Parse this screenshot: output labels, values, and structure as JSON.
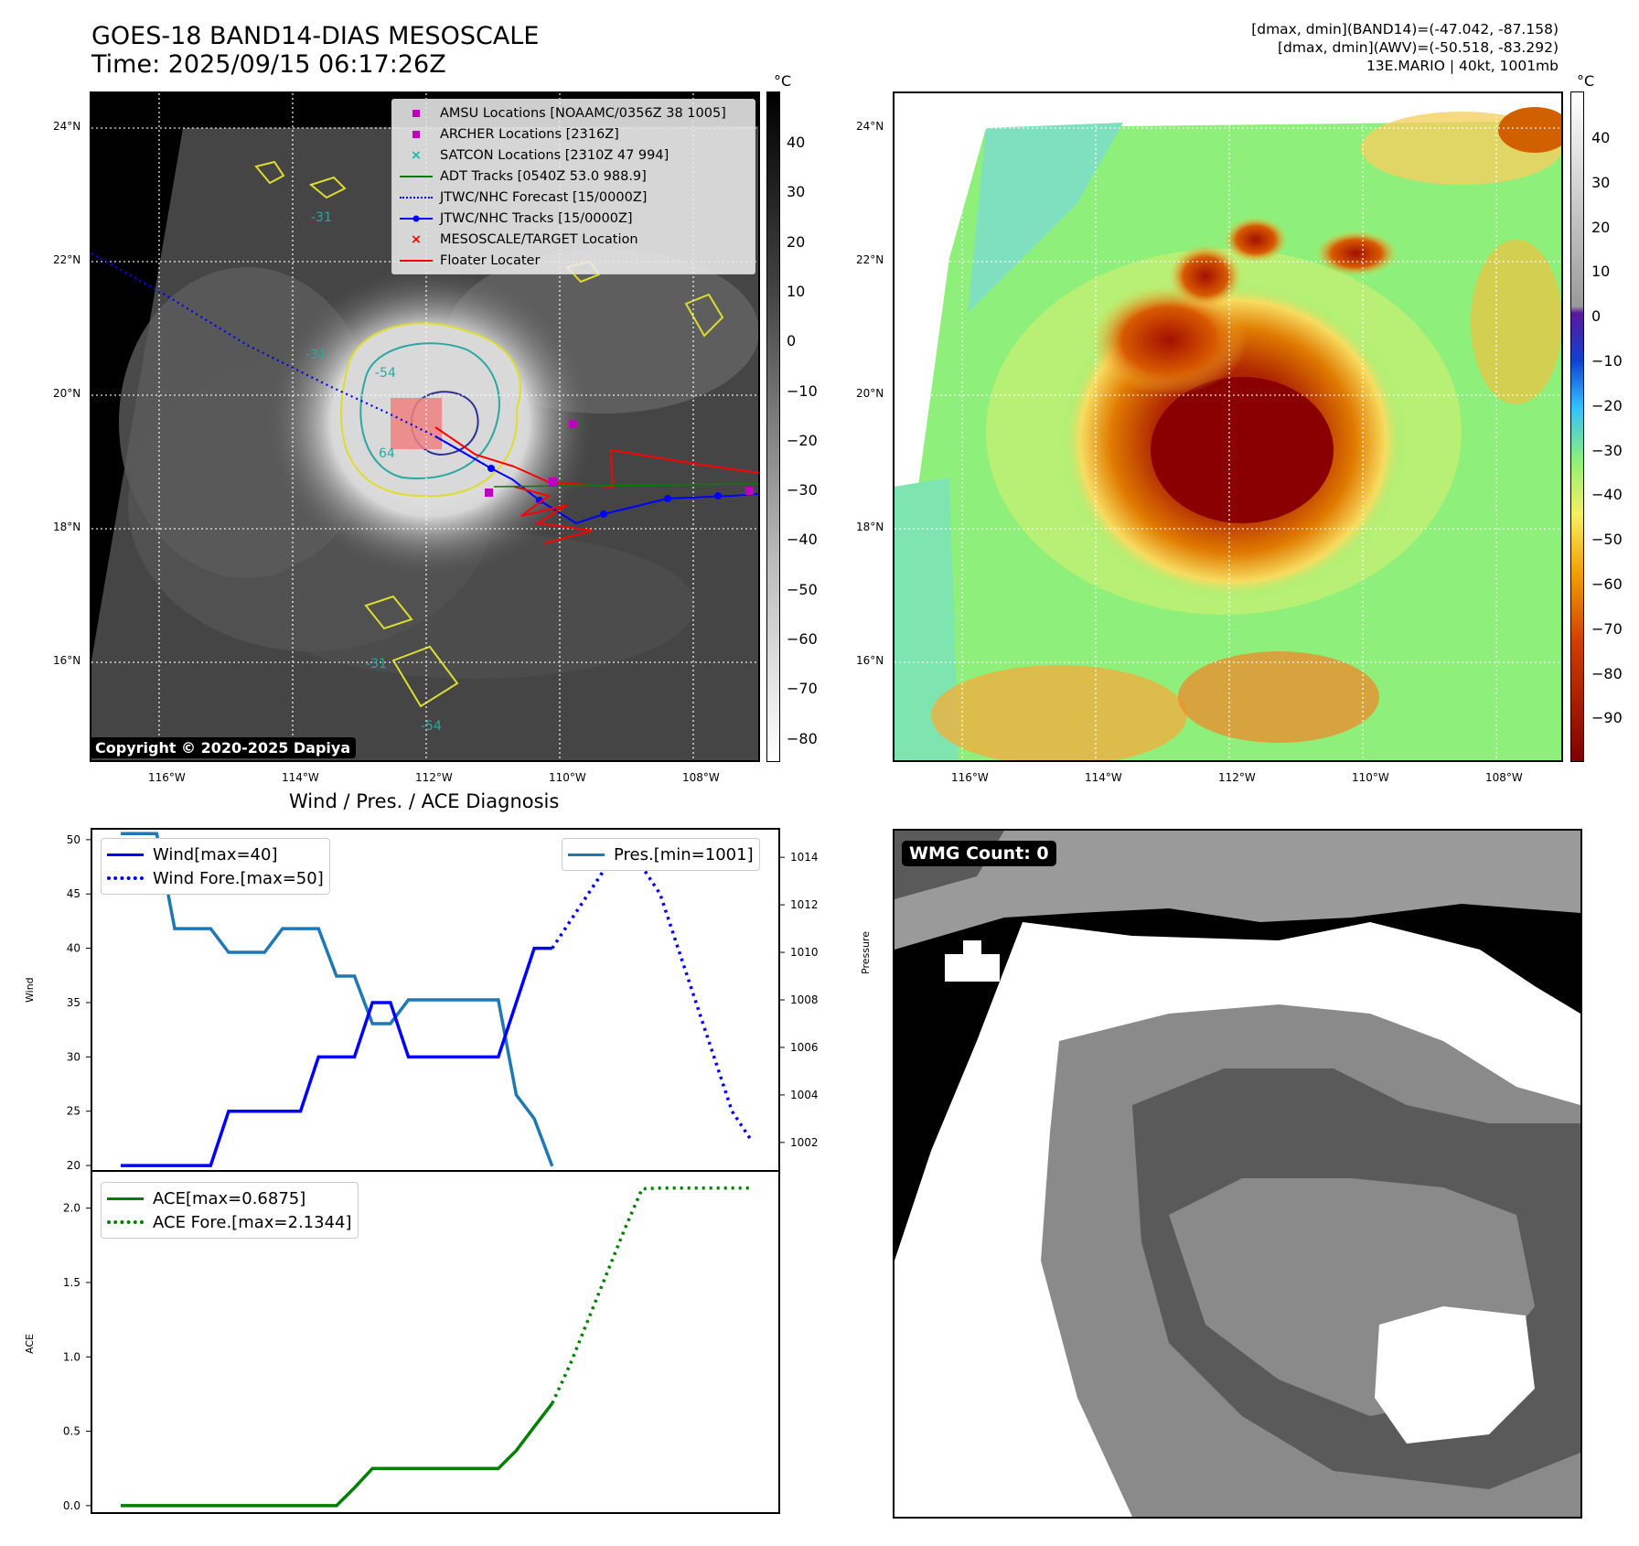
{
  "header": {
    "title_line1": "GOES-18 BAND14-DIAS MESOSCALE",
    "title_line2": "Time: 2025/09/15 06:17:26Z",
    "right_line1": "[dmax, dmin](BAND14)=(-47.042, -87.158)",
    "right_line2": "[dmax, dmin](AWV)=(-50.518, -83.292)",
    "right_line3": "13E.MARIO | 40kt, 1001mb"
  },
  "map": {
    "lat_labels": [
      "24°N",
      "22°N",
      "20°N",
      "18°N",
      "16°N"
    ],
    "lon_labels": [
      "116°W",
      "114°W",
      "112°W",
      "110°W",
      "108°W"
    ],
    "copyright": "Copyright © 2020-2025 Dapiya",
    "contour_labels": [
      "-31",
      "-54",
      "64",
      "-31",
      "-54",
      "-31"
    ]
  },
  "legend": {
    "items": [
      {
        "label": "AMSU Locations [NOAAMC/0356Z 38 1005]",
        "color": "#c000c0",
        "symbol": "square"
      },
      {
        "label": "ARCHER Locations [2316Z]",
        "color": "#c000c0",
        "symbol": "square"
      },
      {
        "label": "SATCON Locations [2310Z 47 994]",
        "color": "#17b8b0",
        "symbol": "x"
      },
      {
        "label": "ADT Tracks [0540Z 53.0 988.9]",
        "color": "#008000",
        "symbol": "line"
      },
      {
        "label": "JTWC/NHC Forecast [15/0000Z]",
        "color": "#0000ff",
        "symbol": "dotted"
      },
      {
        "label": "JTWC/NHC Tracks [15/0000Z]",
        "color": "#0000ff",
        "symbol": "line-dot"
      },
      {
        "label": "MESOSCALE/TARGET Location",
        "color": "#ff0000",
        "symbol": "x"
      },
      {
        "label": "Floater Locater",
        "color": "#ff0000",
        "symbol": "line"
      }
    ]
  },
  "colorbar_gray": {
    "unit": "°C",
    "ticks": [
      "40",
      "30",
      "20",
      "10",
      "0",
      "−10",
      "−20",
      "−30",
      "−40",
      "−50",
      "−60",
      "−70",
      "−80"
    ]
  },
  "colorbar_color": {
    "unit": "°C",
    "ticks": [
      "40",
      "30",
      "20",
      "10",
      "0",
      "−10",
      "−20",
      "−30",
      "−40",
      "−50",
      "−60",
      "−70",
      "−80",
      "−90"
    ]
  },
  "diagnosis": {
    "title": "Wind / Pres. / ACE Diagnosis",
    "wind_ylabel": "Wind",
    "pres_ylabel": "Pressure",
    "ace_ylabel": "ACE",
    "legend_wind": "Wind[max=40]",
    "legend_wind_fore": "Wind Fore.[max=50]",
    "legend_pres": "Pres.[min=1001]",
    "legend_ace": "ACE[max=0.6875]",
    "legend_ace_fore": "ACE Fore.[max=2.1344]",
    "wind_ticks": [
      "50",
      "45",
      "40",
      "35",
      "30",
      "25",
      "20"
    ],
    "pres_ticks": [
      "1014",
      "1012",
      "1010",
      "1008",
      "1006",
      "1004",
      "1002"
    ],
    "ace_ticks": [
      "2.0",
      "1.5",
      "1.0",
      "0.5",
      "0.0"
    ]
  },
  "chart_data": [
    {
      "type": "line",
      "title": "Wind / Pres. / ACE Diagnosis",
      "ylabel": "Wind",
      "ylim": [
        19.5,
        51
      ],
      "x": [
        0,
        1,
        2,
        3,
        4,
        5,
        6,
        7,
        8,
        9,
        10,
        11,
        12,
        13,
        14,
        15,
        16,
        17,
        18,
        19,
        20,
        21,
        22,
        23,
        24,
        25,
        26,
        27,
        28,
        29,
        30,
        31,
        32,
        33,
        34,
        35
      ],
      "series": [
        {
          "name": "Wind[max=40]",
          "color": "#0000ff",
          "style": "solid",
          "x": [
            0,
            1,
            2,
            3,
            4,
            5,
            6,
            7,
            8,
            9,
            10,
            11,
            12,
            13,
            14,
            15,
            16,
            17,
            18,
            19,
            20,
            21,
            22,
            23,
            24
          ],
          "values": [
            20,
            20,
            20,
            20,
            20,
            20,
            25,
            25,
            25,
            25,
            25,
            30,
            30,
            30,
            35,
            35,
            30,
            30,
            30,
            30,
            30,
            30,
            35,
            40,
            40
          ]
        },
        {
          "name": "Wind Fore.[max=50]",
          "color": "#0000ff",
          "style": "dotted",
          "x": [
            24,
            25,
            26,
            27,
            28,
            29,
            30,
            31,
            32,
            33,
            34,
            35
          ],
          "values": [
            40,
            42.5,
            45,
            47.5,
            50,
            47.5,
            45,
            40,
            35,
            30,
            25,
            22.5
          ]
        }
      ]
    },
    {
      "type": "line",
      "ylabel": "Pressure",
      "ylim": [
        1000.8,
        1015.2
      ],
      "series": [
        {
          "name": "Pres.[min=1001]",
          "color": "#1f77b4",
          "style": "solid",
          "x": [
            0,
            1,
            2,
            3,
            4,
            5,
            6,
            7,
            8,
            9,
            10,
            11,
            12,
            13,
            14,
            15,
            16,
            17,
            18,
            19,
            20,
            21,
            22,
            23,
            24
          ],
          "values": [
            1015,
            1015,
            1015,
            1011,
            1011,
            1011,
            1010,
            1010,
            1010,
            1011,
            1011,
            1011,
            1009,
            1009,
            1007,
            1007,
            1008,
            1008,
            1008,
            1008,
            1008,
            1008,
            1004,
            1003,
            1001
          ]
        }
      ]
    },
    {
      "type": "line",
      "ylabel": "ACE",
      "ylim": [
        -0.05,
        2.25
      ],
      "series": [
        {
          "name": "ACE[max=0.6875]",
          "color": "#008000",
          "style": "solid",
          "x": [
            0,
            1,
            2,
            3,
            4,
            5,
            6,
            7,
            8,
            9,
            10,
            11,
            12,
            13,
            14,
            15,
            16,
            17,
            18,
            19,
            20,
            21,
            22,
            23,
            24
          ],
          "values": [
            0,
            0,
            0,
            0,
            0,
            0,
            0,
            0,
            0,
            0,
            0,
            0,
            0,
            0.12,
            0.25,
            0.25,
            0.25,
            0.25,
            0.25,
            0.25,
            0.25,
            0.25,
            0.37,
            0.53,
            0.6875
          ]
        },
        {
          "name": "ACE Fore.[max=2.1344]",
          "color": "#008000",
          "style": "dotted",
          "x": [
            24,
            25,
            26,
            27,
            28,
            29,
            30,
            31,
            32,
            33,
            34,
            35
          ],
          "values": [
            0.6875,
            0.95,
            1.25,
            1.55,
            1.85,
            2.13,
            2.1344,
            2.1344,
            2.1344,
            2.1344,
            2.1344,
            2.1344
          ]
        }
      ]
    }
  ],
  "wmg": {
    "label": "WMG Count: 0"
  }
}
